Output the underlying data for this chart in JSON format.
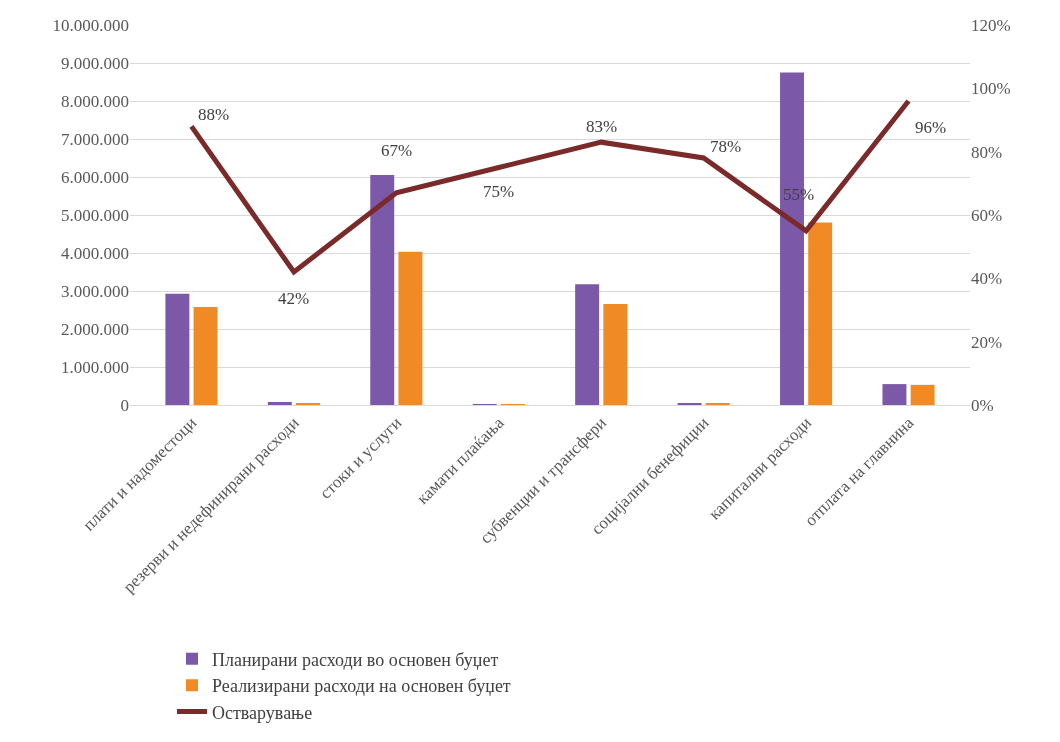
{
  "chart_data": {
    "type": "bar",
    "categories": [
      "плати и надоместоци",
      "резерви и недефинирани расходи",
      "стоки и услуги",
      "камати плаќања",
      "субвенции и трансфери",
      "социјални бенефиции",
      "капитални расходи",
      "отплата на главнина"
    ],
    "series": [
      {
        "name": "Планирани расходи во основен буџет",
        "color": "#7b58a8",
        "values": [
          2930000,
          80000,
          6050000,
          10000,
          3180000,
          50000,
          8750000,
          550000
        ]
      },
      {
        "name": "Реализирани расходи на основен буџет",
        "color": "#f08a24",
        "values": [
          2580000,
          30000,
          4030000,
          10000,
          2660000,
          40000,
          4800000,
          530000
        ]
      },
      {
        "name": "Остварување",
        "type": "line",
        "axis": "y2",
        "color": "#7b2a2a",
        "values": [
          88,
          42,
          67,
          75,
          83,
          78,
          55,
          96
        ],
        "value_labels": [
          "88%",
          "42%",
          "67%",
          "75%",
          "83%",
          "78%",
          "55%",
          "96%"
        ]
      }
    ],
    "ylim": [
      0,
      10000000
    ],
    "yticks": [
      0,
      {
        "value": 1000000,
        "label": "1.000.000"
      },
      {
        "value": 2000000,
        "label": "2.000.000"
      },
      {
        "value": 3000000,
        "label": "3.000.000"
      },
      {
        "value": 4000000,
        "label": "4.000.000"
      },
      {
        "value": 5000000,
        "label": "5.000.000"
      },
      {
        "value": 6000000,
        "label": "6.000.000"
      },
      {
        "value": 7000000,
        "label": "7.000.000"
      },
      {
        "value": 8000000,
        "label": "8.000.000"
      },
      {
        "value": 9000000,
        "label": "9.000.000"
      },
      {
        "value": 10000000,
        "label": "10.000.000"
      }
    ],
    "y2lim": [
      0,
      120
    ],
    "y2ticks": [
      {
        "value": 0,
        "label": "0%"
      },
      {
        "value": 20,
        "label": "20%"
      },
      {
        "value": 40,
        "label": "40%"
      },
      {
        "value": 60,
        "label": "60%"
      },
      {
        "value": 80,
        "label": "80%"
      },
      {
        "value": 100,
        "label": "100%"
      },
      {
        "value": 120,
        "label": "120%"
      }
    ],
    "grid": "y",
    "legend": "bottom"
  }
}
